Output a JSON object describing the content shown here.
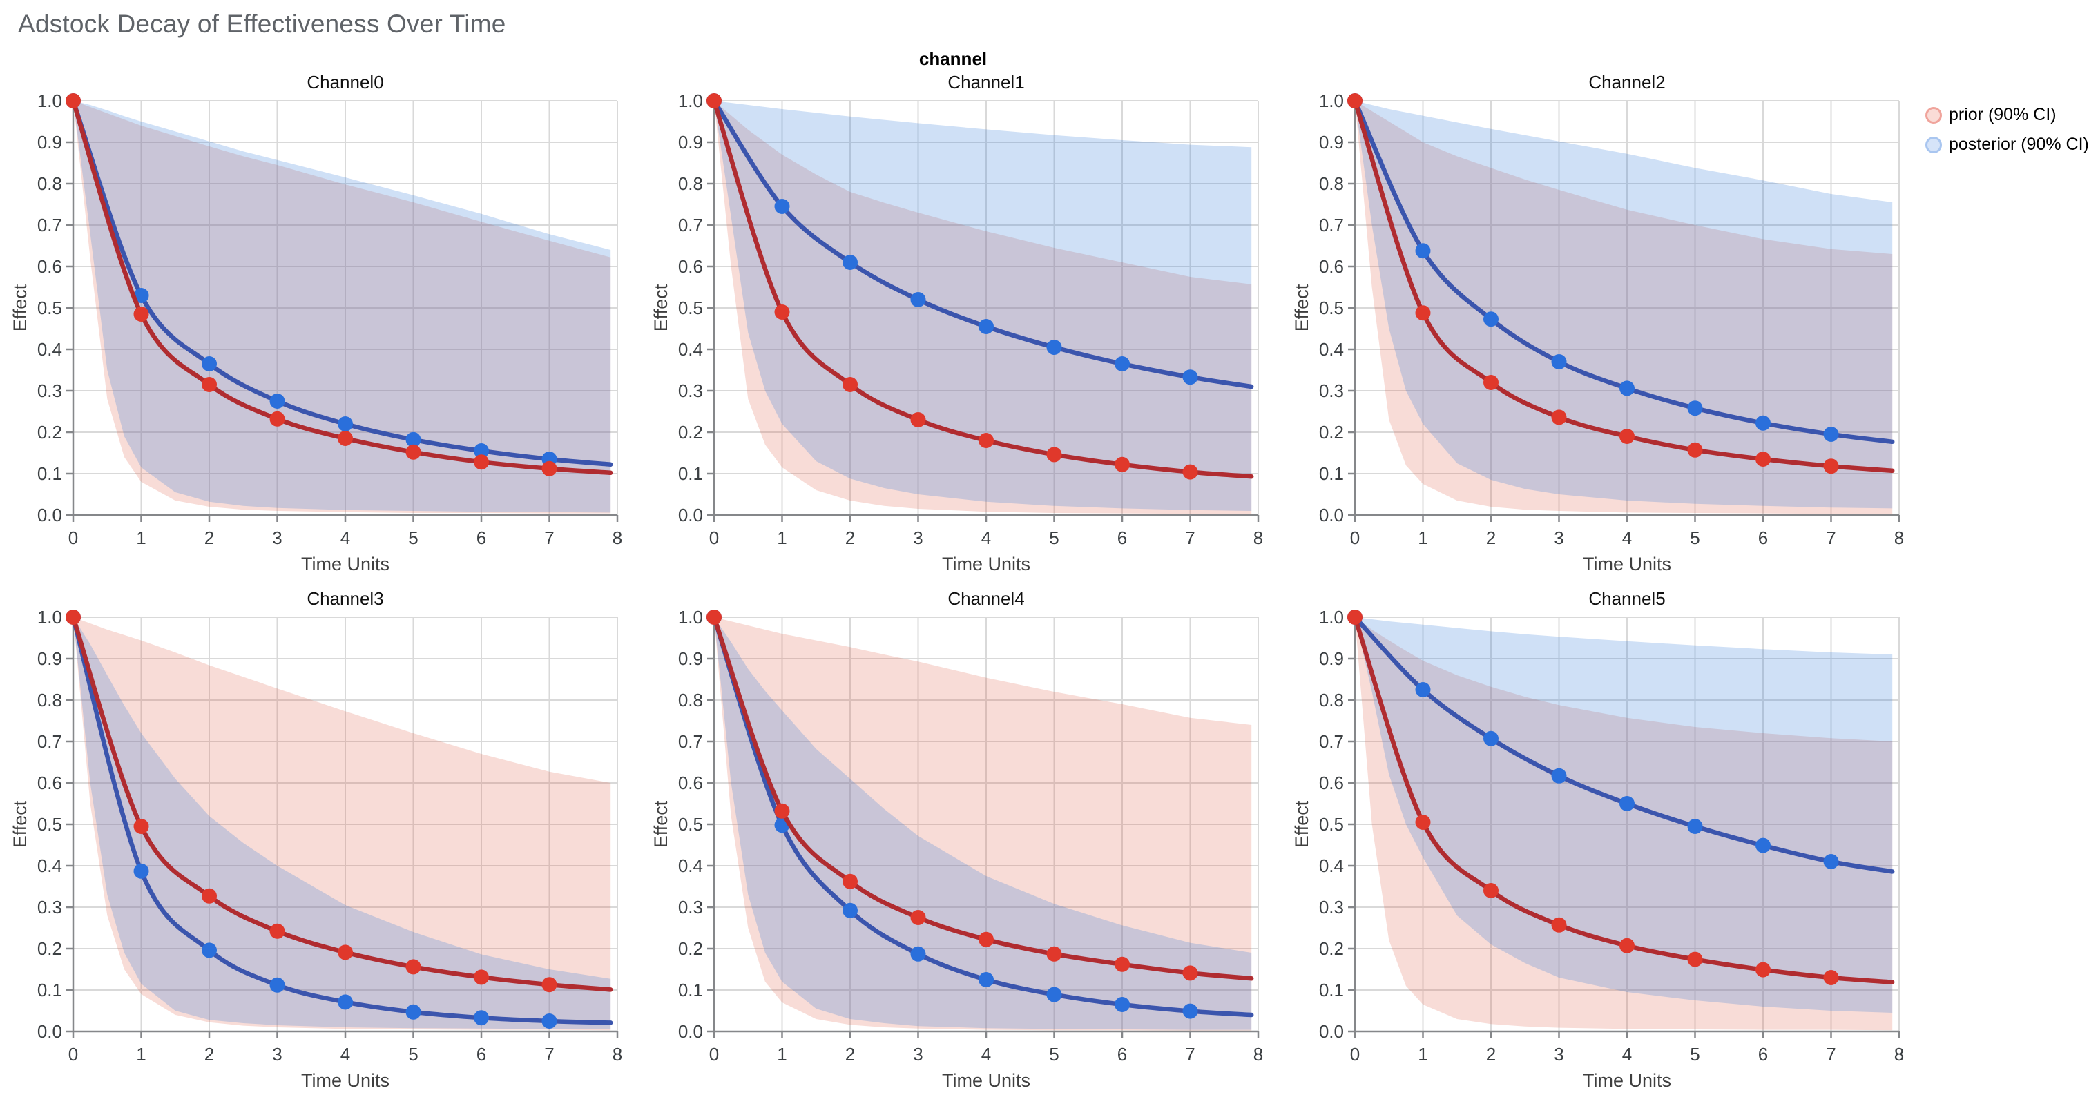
{
  "page": {
    "title": "Adstock Decay of Effectiveness Over Time",
    "facet_header": "channel"
  },
  "legend": {
    "items": [
      {
        "label": "prior (90% CI)",
        "ring": "#f0a49c",
        "fill": "#fadcd7"
      },
      {
        "label": "posterior (90% CI)",
        "ring": "#a9c6f0",
        "fill": "#d6e4f9"
      }
    ]
  },
  "style": {
    "prior_line": "#b02c30",
    "prior_point": "#e0382b",
    "posterior_line": "#3b55ad",
    "posterior_point": "#2a6fdb",
    "prior_band": "rgba(223,96,73,0.22)",
    "posterior_band": "rgba(55,126,218,0.24)",
    "grid_line": "#d9d9d9",
    "axis_line": "#85878a",
    "tick_label": "#3c4043",
    "axis_title": "#3f3f3f",
    "subplot_title": "#111111"
  },
  "chart_data": {
    "type": "line",
    "title": "Adstock Decay of Effectiveness Over Time",
    "xlabel": "Time Units",
    "ylabel": "Effect",
    "xlim": [
      0,
      8
    ],
    "ylim": [
      0.0,
      1.0
    ],
    "x_ticks": [
      0,
      1,
      2,
      3,
      4,
      5,
      6,
      7,
      8
    ],
    "y_ticks": [
      "0.0",
      "0.1",
      "0.2",
      "0.3",
      "0.4",
      "0.5",
      "0.6",
      "0.7",
      "0.8",
      "0.9",
      "1.0"
    ],
    "grid": true,
    "legend_position": "top-right",
    "series_names": [
      "prior (90% CI)",
      "posterior (90% CI)"
    ],
    "mean_x": [
      0,
      1,
      2,
      3,
      4,
      5,
      6,
      7,
      7.9
    ],
    "band_x": [
      0,
      0.25,
      0.5,
      0.75,
      1,
      1.5,
      2,
      2.5,
      3,
      4,
      5,
      6,
      7,
      7.9
    ],
    "channels": [
      {
        "name": "Channel0",
        "prior": {
          "mean": [
            1,
            0.485,
            0.315,
            0.232,
            0.185,
            0.152,
            0.128,
            0.112,
            0.102
          ],
          "hi": [
            1,
            0.985,
            0.97,
            0.955,
            0.94,
            0.915,
            0.89,
            0.866,
            0.845,
            0.798,
            0.755,
            0.708,
            0.662,
            0.622
          ],
          "lo": [
            1,
            0.62,
            0.28,
            0.14,
            0.08,
            0.035,
            0.02,
            0.013,
            0.01,
            0.007,
            0.005,
            0.005,
            0.004,
            0.004
          ]
        },
        "posterior": {
          "mean": [
            1,
            0.53,
            0.365,
            0.275,
            0.22,
            0.182,
            0.155,
            0.135,
            0.122
          ],
          "hi": [
            1,
            0.99,
            0.977,
            0.963,
            0.95,
            0.926,
            0.902,
            0.878,
            0.857,
            0.815,
            0.772,
            0.727,
            0.678,
            0.64
          ],
          "lo": [
            1,
            0.68,
            0.35,
            0.19,
            0.115,
            0.055,
            0.032,
            0.022,
            0.017,
            0.012,
            0.01,
            0.008,
            0.007,
            0.006
          ]
        }
      },
      {
        "name": "Channel1",
        "prior": {
          "mean": [
            1,
            0.49,
            0.315,
            0.23,
            0.18,
            0.146,
            0.122,
            0.104,
            0.093
          ],
          "hi": [
            1,
            0.965,
            0.93,
            0.9,
            0.87,
            0.822,
            0.78,
            0.754,
            0.73,
            0.685,
            0.645,
            0.61,
            0.575,
            0.557
          ],
          "lo": [
            1,
            0.6,
            0.28,
            0.17,
            0.115,
            0.06,
            0.035,
            0.022,
            0.015,
            0.008,
            0.005,
            0.004,
            0.003,
            0.003
          ]
        },
        "posterior": {
          "mean": [
            1,
            0.745,
            0.61,
            0.52,
            0.455,
            0.405,
            0.365,
            0.333,
            0.31
          ],
          "hi": [
            1,
            0.995,
            0.99,
            0.985,
            0.98,
            0.971,
            0.962,
            0.954,
            0.946,
            0.931,
            0.917,
            0.905,
            0.894,
            0.888
          ],
          "lo": [
            1,
            0.72,
            0.44,
            0.3,
            0.22,
            0.13,
            0.088,
            0.065,
            0.05,
            0.032,
            0.022,
            0.016,
            0.012,
            0.01
          ]
        }
      },
      {
        "name": "Channel2",
        "prior": {
          "mean": [
            1,
            0.488,
            0.32,
            0.236,
            0.19,
            0.157,
            0.135,
            0.118,
            0.107
          ],
          "hi": [
            1,
            0.975,
            0.95,
            0.925,
            0.9,
            0.866,
            0.838,
            0.81,
            0.785,
            0.737,
            0.7,
            0.666,
            0.642,
            0.63
          ],
          "lo": [
            1,
            0.55,
            0.23,
            0.12,
            0.075,
            0.035,
            0.02,
            0.013,
            0.01,
            0.006,
            0.005,
            0.004,
            0.003,
            0.003
          ]
        },
        "posterior": {
          "mean": [
            1,
            0.638,
            0.473,
            0.37,
            0.306,
            0.258,
            0.222,
            0.195,
            0.177
          ],
          "hi": [
            1,
            0.99,
            0.98,
            0.972,
            0.964,
            0.948,
            0.932,
            0.917,
            0.902,
            0.872,
            0.838,
            0.808,
            0.775,
            0.755
          ],
          "lo": [
            1,
            0.7,
            0.45,
            0.3,
            0.22,
            0.125,
            0.085,
            0.063,
            0.05,
            0.035,
            0.027,
            0.022,
            0.018,
            0.016
          ]
        }
      },
      {
        "name": "Channel3",
        "prior": {
          "mean": [
            1,
            0.495,
            0.327,
            0.242,
            0.191,
            0.156,
            0.131,
            0.113,
            0.101
          ],
          "hi": [
            1,
            0.985,
            0.97,
            0.957,
            0.944,
            0.915,
            0.884,
            0.856,
            0.828,
            0.773,
            0.72,
            0.67,
            0.627,
            0.6
          ],
          "lo": [
            1,
            0.55,
            0.28,
            0.15,
            0.09,
            0.04,
            0.022,
            0.014,
            0.01,
            0.006,
            0.005,
            0.004,
            0.004,
            0.003
          ]
        },
        "posterior": {
          "mean": [
            1,
            0.387,
            0.196,
            0.112,
            0.071,
            0.047,
            0.033,
            0.025,
            0.021
          ],
          "hi": [
            1,
            0.935,
            0.86,
            0.787,
            0.72,
            0.61,
            0.52,
            0.455,
            0.4,
            0.305,
            0.24,
            0.186,
            0.15,
            0.127
          ],
          "lo": [
            1,
            0.6,
            0.33,
            0.19,
            0.115,
            0.05,
            0.028,
            0.02,
            0.015,
            0.01,
            0.008,
            0.007,
            0.006,
            0.005
          ]
        }
      },
      {
        "name": "Channel4",
        "prior": {
          "mean": [
            1,
            0.532,
            0.362,
            0.275,
            0.222,
            0.187,
            0.162,
            0.141,
            0.128
          ],
          "hi": [
            1,
            0.99,
            0.98,
            0.97,
            0.96,
            0.944,
            0.928,
            0.91,
            0.893,
            0.854,
            0.82,
            0.79,
            0.757,
            0.74
          ],
          "lo": [
            1,
            0.52,
            0.25,
            0.12,
            0.07,
            0.03,
            0.016,
            0.01,
            0.007,
            0.004,
            0.003,
            0.003,
            0.002,
            0.002
          ]
        },
        "posterior": {
          "mean": [
            1,
            0.498,
            0.292,
            0.187,
            0.125,
            0.089,
            0.065,
            0.049,
            0.04
          ],
          "hi": [
            1,
            0.94,
            0.875,
            0.822,
            0.775,
            0.682,
            0.61,
            0.537,
            0.472,
            0.375,
            0.308,
            0.256,
            0.214,
            0.19
          ],
          "lo": [
            1,
            0.6,
            0.33,
            0.19,
            0.12,
            0.055,
            0.03,
            0.02,
            0.013,
            0.008,
            0.006,
            0.005,
            0.004,
            0.004
          ]
        }
      },
      {
        "name": "Channel5",
        "prior": {
          "mean": [
            1,
            0.505,
            0.34,
            0.257,
            0.207,
            0.174,
            0.149,
            0.13,
            0.119
          ],
          "hi": [
            1,
            0.97,
            0.944,
            0.919,
            0.895,
            0.86,
            0.832,
            0.808,
            0.788,
            0.757,
            0.735,
            0.72,
            0.708,
            0.7
          ],
          "lo": [
            1,
            0.5,
            0.22,
            0.11,
            0.065,
            0.03,
            0.018,
            0.012,
            0.009,
            0.006,
            0.005,
            0.004,
            0.004,
            0.003
          ]
        },
        "posterior": {
          "mean": [
            1,
            0.825,
            0.707,
            0.617,
            0.55,
            0.495,
            0.449,
            0.41,
            0.386
          ],
          "hi": [
            1,
            0.995,
            0.99,
            0.986,
            0.982,
            0.974,
            0.966,
            0.959,
            0.953,
            0.942,
            0.932,
            0.923,
            0.915,
            0.91
          ],
          "lo": [
            1,
            0.82,
            0.62,
            0.5,
            0.42,
            0.28,
            0.21,
            0.165,
            0.13,
            0.095,
            0.075,
            0.06,
            0.05,
            0.045
          ]
        }
      }
    ]
  }
}
